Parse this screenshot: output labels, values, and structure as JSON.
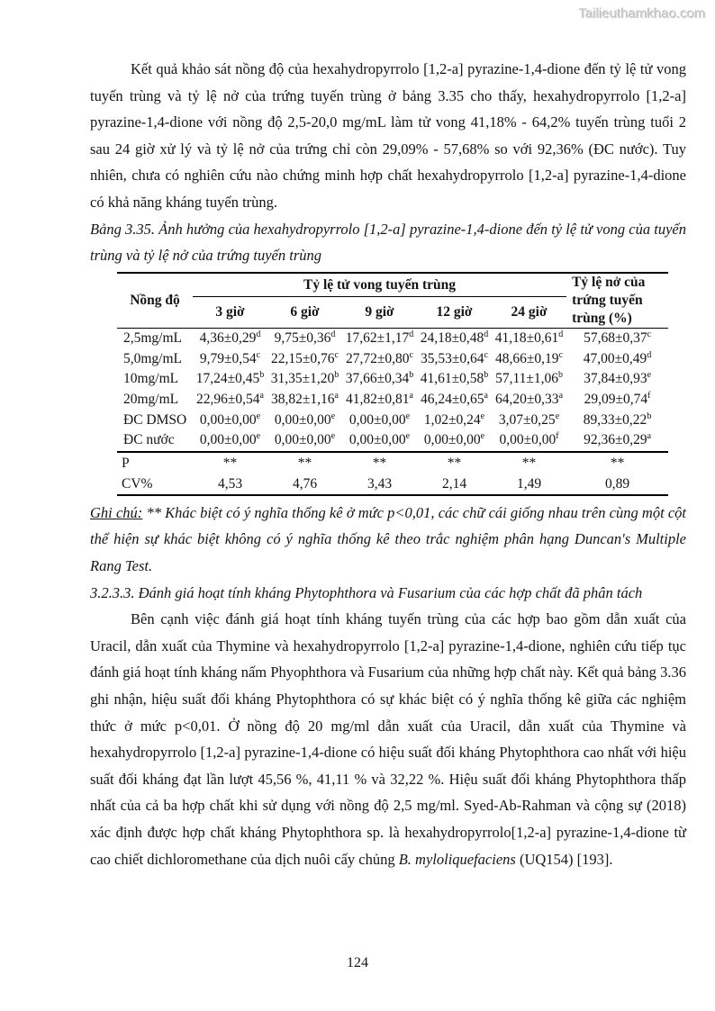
{
  "watermark": "Tailieuthamkhao.com",
  "page_number": "124",
  "paragraph1": "Kết quả khảo sát nồng độ của hexahydropyrrolo [1,2-a] pyrazine-1,4-dione đến tỷ lệ tử vong tuyến trùng và tỷ lệ nở của trứng tuyến trùng ở bảng 3.35 cho thấy, hexahydropyrrolo [1,2-a] pyrazine-1,4-dione với nồng độ 2,5-20,0 mg/mL làm tử vong 41,18% - 64,2% tuyến trùng tuổi 2 sau 24 giờ xử lý và tỷ lệ nở của trứng chỉ còn 29,09% - 57,68% so với 92,36% (ĐC nước). Tuy nhiên, chưa có nghiên cứu nào chứng minh hợp chất hexahydropyrrolo [1,2-a] pyrazine-1,4-dione có khả năng kháng tuyến trùng.",
  "table_caption": "Bảng 3.35. Ảnh hưởng của hexahydropyrrolo [1,2-a] pyrazine-1,4-dione đến tỷ lệ tử vong của tuyến trùng và tỷ lệ nở của trứng tuyến trùng",
  "table": {
    "col0_header": "Nồng độ",
    "group_header": "Tỷ lệ tử vong tuyến trùng",
    "time_headers": [
      "3 giờ",
      "6 giờ",
      "9 giờ",
      "12 giờ",
      "24 giờ"
    ],
    "last_header": "Tỷ lệ nở của trứng tuyến trùng (%)",
    "rows": [
      {
        "label": "2,5mg/mL",
        "cells": [
          {
            "v": "4,36±0,29",
            "s": "d"
          },
          {
            "v": "9,75±0,36",
            "s": "d"
          },
          {
            "v": "17,62±1,17",
            "s": "d"
          },
          {
            "v": "24,18±0,48",
            "s": "d"
          },
          {
            "v": "41,18±0,61",
            "s": "d"
          },
          {
            "v": "57,68±0,37",
            "s": "c"
          }
        ]
      },
      {
        "label": "5,0mg/mL",
        "cells": [
          {
            "v": "9,79±0,54",
            "s": "c"
          },
          {
            "v": "22,15±0,76",
            "s": "c"
          },
          {
            "v": "27,72±0,80",
            "s": "c"
          },
          {
            "v": "35,53±0,64",
            "s": "c"
          },
          {
            "v": "48,66±0,19",
            "s": "c"
          },
          {
            "v": "47,00±0,49",
            "s": "d"
          }
        ]
      },
      {
        "label": "10mg/mL",
        "cells": [
          {
            "v": "17,24±0,45",
            "s": "b"
          },
          {
            "v": "31,35±1,20",
            "s": "b"
          },
          {
            "v": "37,66±0,34",
            "s": "b"
          },
          {
            "v": "41,61±0,58",
            "s": "b"
          },
          {
            "v": "57,11±1,06",
            "s": "b"
          },
          {
            "v": "37,84±0,93",
            "s": "e"
          }
        ]
      },
      {
        "label": "20mg/mL",
        "cells": [
          {
            "v": "22,96±0,54",
            "s": "a"
          },
          {
            "v": "38,82±1,16",
            "s": "a"
          },
          {
            "v": "41,82±0,81",
            "s": "a"
          },
          {
            "v": "46,24±0,65",
            "s": "a"
          },
          {
            "v": "64,20±0,33",
            "s": "a"
          },
          {
            "v": "29,09±0,74",
            "s": "f"
          }
        ]
      },
      {
        "label": "ĐC DMSO",
        "cells": [
          {
            "v": "0,00±0,00",
            "s": "e"
          },
          {
            "v": "0,00±0,00",
            "s": "e"
          },
          {
            "v": "0,00±0,00",
            "s": "e"
          },
          {
            "v": "1,02±0,24",
            "s": "e"
          },
          {
            "v": "3,07±0,25",
            "s": "e"
          },
          {
            "v": "89,33±0,22",
            "s": "b"
          }
        ]
      },
      {
        "label": "ĐC nước",
        "cells": [
          {
            "v": "0,00±0,00",
            "s": "e"
          },
          {
            "v": "0,00±0,00",
            "s": "e"
          },
          {
            "v": "0,00±0,00",
            "s": "e"
          },
          {
            "v": "0,00±0,00",
            "s": "e"
          },
          {
            "v": "0,00±0,00",
            "s": "f"
          },
          {
            "v": "92,36±0,29",
            "s": "a"
          }
        ]
      }
    ],
    "stat_rows": [
      {
        "label": "P",
        "values": [
          "**",
          "**",
          "**",
          "**",
          "**",
          "**"
        ]
      },
      {
        "label": "CV%",
        "values": [
          "4,53",
          "4,76",
          "3,43",
          "2,14",
          "1,49",
          "0,89"
        ]
      }
    ]
  },
  "note": {
    "label": "Ghi chú:",
    "text": " ** Khác biệt có ý nghĩa thống kê ở mức p<0,01, các chữ cái giống nhau trên cùng một cột thể hiện sự khác biệt không có ý nghĩa thống kê theo trắc nghiệm phân hạng Duncan's Multiple Rang Test."
  },
  "section_heading": "3.2.3.3. Đánh giá hoạt tính kháng Phytophthora và Fusarium của các hợp chất đã phân tách",
  "paragraph2": {
    "text1": "Bên cạnh việc đánh giá hoạt tính kháng tuyến trùng của các hợp bao gồm dẫn xuất của Uracil, dẫn xuất của Thymine và hexahydropyrrolo [1,2-a] pyrazine-1,4-dione, nghiên cứu tiếp tục đánh giá hoạt tính kháng nấm Phyophthora và Fusarium của những hợp chất này. Kết quả bảng 3.36 ghi nhận, hiệu suất đối kháng Phytophthora có sự khác biệt có ý nghĩa thống kê giữa các nghiệm thức ở mức p<0,01. Ở nồng độ 20 mg/ml dẫn xuất của Uracil, dẫn xuất của Thymine và hexahydropyrrolo [1,2-a] pyrazine-1,4-dione có hiệu suất đối kháng Phytophthora cao nhất với hiệu suất đối kháng đạt lần lượt 45,56 %, 41,11 % và 32,22 %. Hiệu suất đối kháng Phytophthora thấp nhất của cả ba hợp chất khi sử dụng với nồng độ 2,5 mg/ml. Syed-Ab-Rahman và cộng sự (2018) xác định được hợp chất kháng Phytophthora sp. là hexahydropyrrolo[1,2-a] pyrazine-1,4-dione từ cao chiết dichloromethane của dịch nuôi cấy chủng ",
    "species": "B. myloliquefaciens",
    "text2": " (UQ154) [193]."
  }
}
